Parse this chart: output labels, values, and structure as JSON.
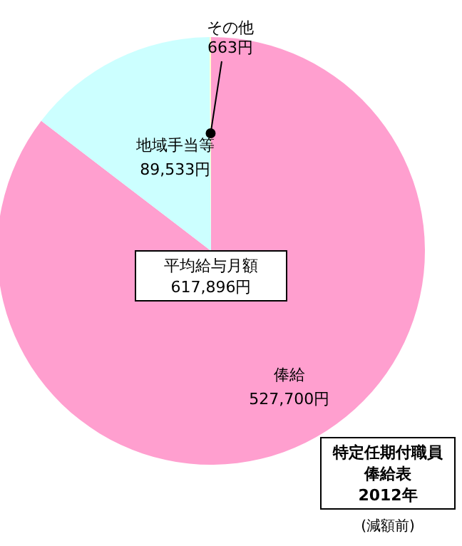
{
  "chart_data": {
    "type": "pie",
    "categories": [
      "俸給",
      "地域手当等",
      "その他"
    ],
    "values": [
      527700,
      89533,
      663
    ],
    "colors": [
      "#ff9fcf",
      "#ccffff",
      "#ffffcc"
    ],
    "value_labels": [
      "527,700円",
      "89,533円",
      "663円"
    ],
    "annotations": [
      "平均給与月額",
      "617,896円",
      "特定任期付職員",
      "俸給表",
      "2012年",
      "(減額前)"
    ]
  }
}
